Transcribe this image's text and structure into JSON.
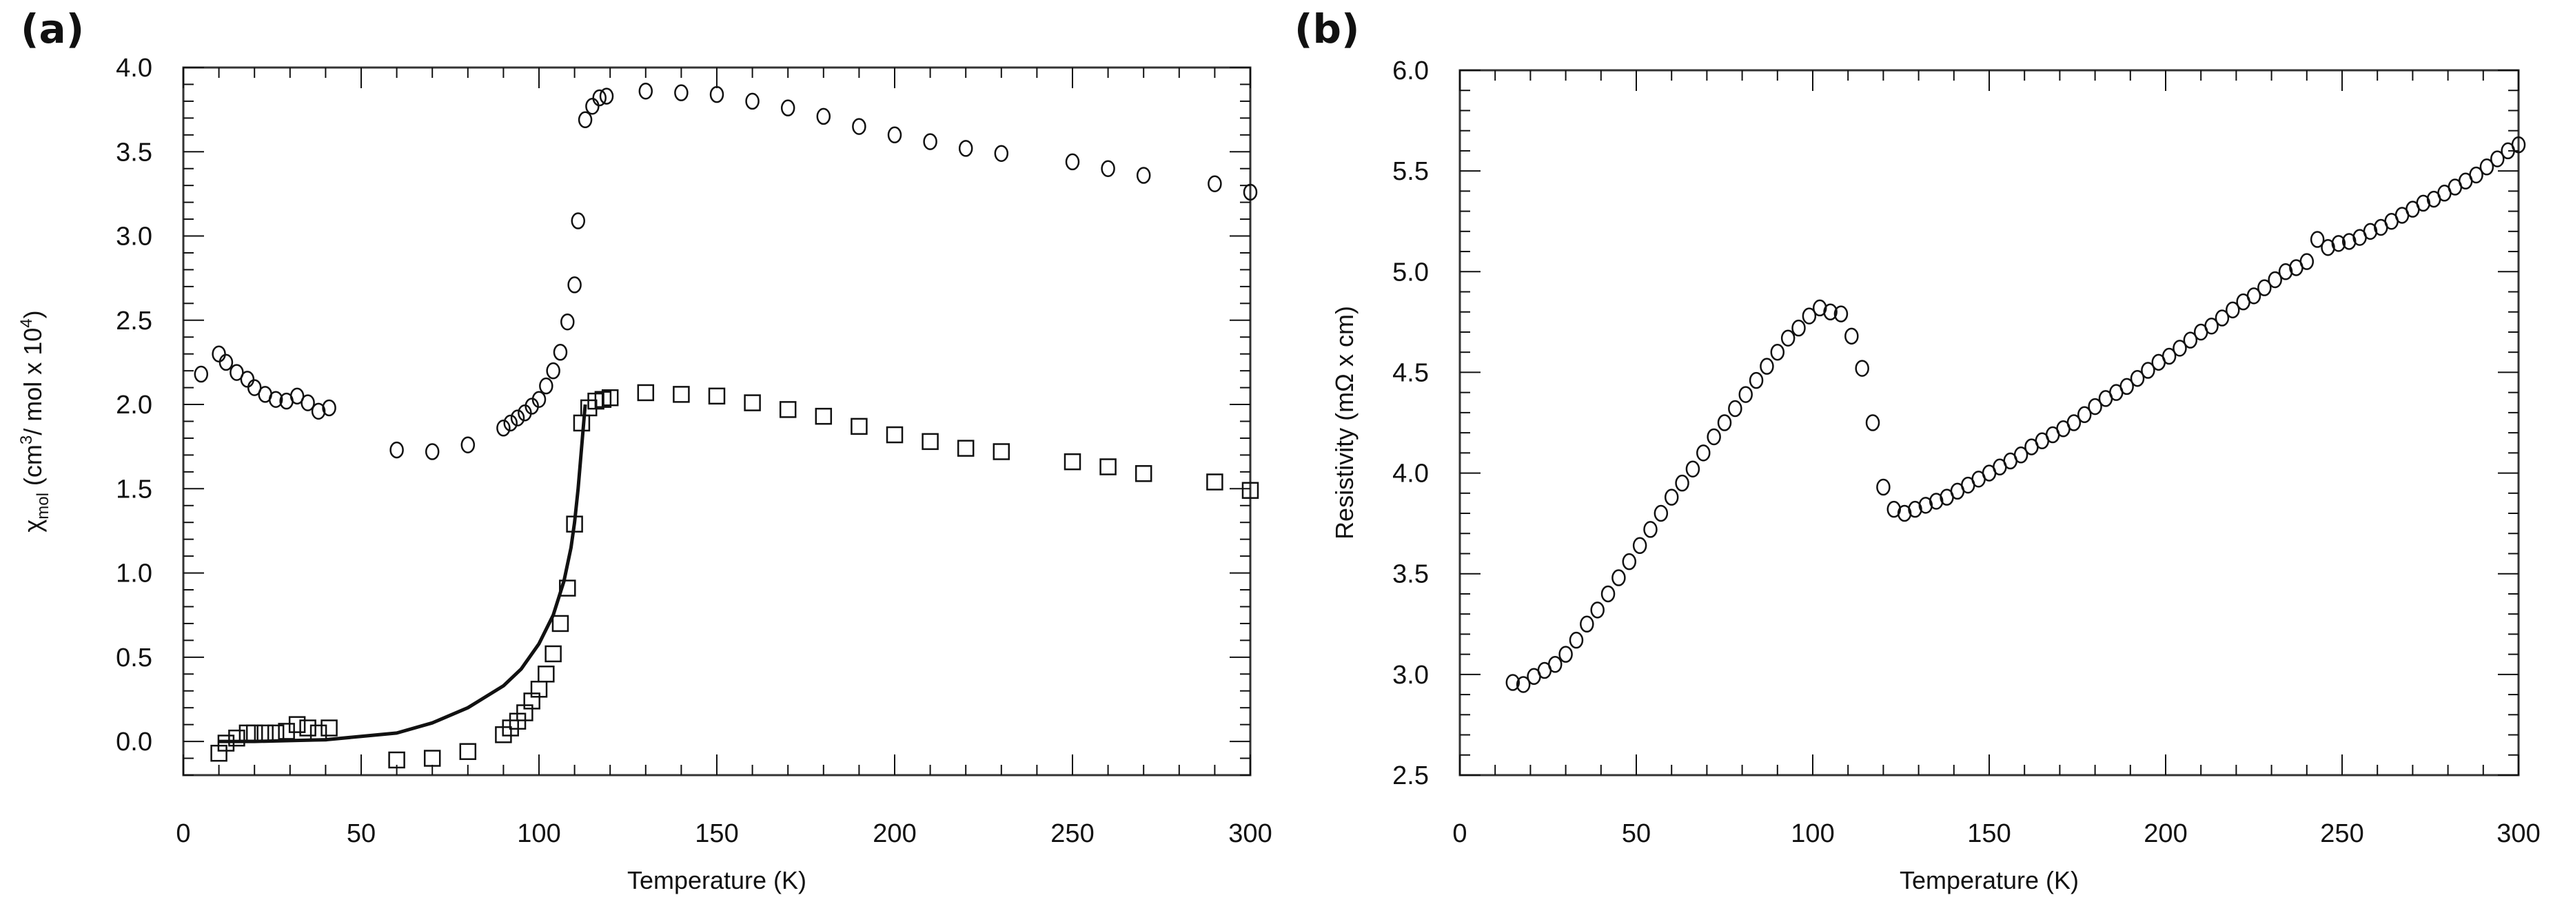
{
  "figure": {
    "panels": [
      {
        "label": "(a)"
      },
      {
        "label": "(b)"
      }
    ]
  },
  "colors": {
    "ink": "#111111",
    "background": "#ffffff",
    "frame": "#333333"
  },
  "chart_data": [
    {
      "panel": "(a)",
      "type": "scatter",
      "title": "",
      "xlabel": "Temperature (K)",
      "ylabel": "χmol (cm³/ mol x 10⁴)",
      "ylabel_parts": {
        "symbol": "χ",
        "sub": "mol",
        "rest": " (cm",
        "sup1": "3",
        "mid": "/ mol x 10",
        "sup2": "4",
        "end": ")"
      },
      "xlim": [
        0,
        300
      ],
      "ylim": [
        -0.2,
        4.0
      ],
      "xticks": [
        0,
        50,
        100,
        150,
        200,
        250,
        300
      ],
      "yticks": [
        0.0,
        0.5,
        1.0,
        1.5,
        2.0,
        2.5,
        3.0,
        3.5,
        4.0
      ],
      "ytick_labels": [
        "0.0",
        "0.5",
        "1.0",
        "1.5",
        "2.0",
        "2.5",
        "3.0",
        "3.5",
        "4.0"
      ],
      "grid": false,
      "legend": null,
      "series": [
        {
          "name": "circles",
          "marker": "circle",
          "x": [
            5,
            10,
            12,
            15,
            18,
            20,
            23,
            26,
            29,
            32,
            35,
            38,
            41,
            60,
            70,
            80,
            90,
            92,
            94,
            96,
            98,
            100,
            102,
            104,
            106,
            108,
            110,
            111,
            113,
            115,
            117,
            119,
            130,
            140,
            150,
            160,
            170,
            180,
            190,
            200,
            210,
            220,
            230,
            250,
            260,
            270,
            290,
            300
          ],
          "y": [
            2.18,
            2.3,
            2.25,
            2.19,
            2.15,
            2.1,
            2.06,
            2.03,
            2.02,
            2.05,
            2.01,
            1.96,
            1.98,
            1.73,
            1.72,
            1.76,
            1.86,
            1.89,
            1.92,
            1.95,
            1.99,
            2.03,
            2.11,
            2.2,
            2.31,
            2.49,
            2.71,
            3.09,
            3.69,
            3.77,
            3.82,
            3.83,
            3.86,
            3.85,
            3.84,
            3.8,
            3.76,
            3.71,
            3.65,
            3.6,
            3.56,
            3.52,
            3.49,
            3.44,
            3.4,
            3.36,
            3.31,
            3.26
          ]
        },
        {
          "name": "squares",
          "marker": "square",
          "x": [
            10,
            12,
            15,
            18,
            20,
            23,
            26,
            29,
            32,
            35,
            38,
            41,
            60,
            70,
            80,
            90,
            92,
            94,
            96,
            98,
            100,
            102,
            104,
            106,
            108,
            110,
            112,
            114,
            116,
            118,
            120,
            130,
            140,
            150,
            160,
            170,
            180,
            190,
            200,
            210,
            220,
            230,
            250,
            260,
            270,
            290,
            300
          ],
          "y": [
            -0.07,
            -0.01,
            0.02,
            0.05,
            0.05,
            0.05,
            0.05,
            0.06,
            0.1,
            0.08,
            0.05,
            0.08,
            -0.11,
            -0.1,
            -0.06,
            0.04,
            0.08,
            0.12,
            0.17,
            0.24,
            0.31,
            0.4,
            0.52,
            0.7,
            0.91,
            1.29,
            1.89,
            1.98,
            2.02,
            2.03,
            2.04,
            2.07,
            2.06,
            2.05,
            2.01,
            1.97,
            1.93,
            1.87,
            1.82,
            1.78,
            1.74,
            1.72,
            1.66,
            1.63,
            1.59,
            1.54,
            1.49
          ]
        },
        {
          "name": "fit",
          "marker": "line",
          "x": [
            10,
            20,
            30,
            40,
            50,
            60,
            70,
            80,
            90,
            95,
            100,
            104,
            107,
            109,
            110,
            111,
            112,
            113
          ],
          "y": [
            0.0,
            0.0,
            0.005,
            0.01,
            0.03,
            0.05,
            0.11,
            0.2,
            0.33,
            0.43,
            0.58,
            0.75,
            0.95,
            1.15,
            1.3,
            1.5,
            1.75,
            2.0
          ]
        }
      ]
    },
    {
      "panel": "(b)",
      "type": "scatter",
      "title": "",
      "xlabel": "Temperature (K)",
      "ylabel": "Resistivity (mΩ x cm)",
      "xlim": [
        0,
        300
      ],
      "ylim": [
        2.5,
        6.0
      ],
      "xticks": [
        0,
        50,
        100,
        150,
        200,
        250,
        300
      ],
      "yticks": [
        2.5,
        3.0,
        3.5,
        4.0,
        4.5,
        5.0,
        5.5,
        6.0
      ],
      "ytick_labels": [
        "2.5",
        "3.0",
        "3.5",
        "4.0",
        "4.5",
        "5.0",
        "5.5",
        "6.0"
      ],
      "grid": false,
      "legend": null,
      "series": [
        {
          "name": "resistivity",
          "marker": "circle",
          "x": [
            15,
            18,
            21,
            24,
            27,
            30,
            33,
            36,
            39,
            42,
            45,
            48,
            51,
            54,
            57,
            60,
            63,
            66,
            69,
            72,
            75,
            78,
            81,
            84,
            87,
            90,
            93,
            96,
            99,
            102,
            105,
            108,
            111,
            114,
            117,
            120,
            123,
            126,
            129,
            132,
            135,
            138,
            141,
            144,
            147,
            150,
            153,
            156,
            159,
            162,
            165,
            168,
            171,
            174,
            177,
            180,
            183,
            186,
            189,
            192,
            195,
            198,
            201,
            204,
            207,
            210,
            213,
            216,
            219,
            222,
            225,
            228,
            231,
            234,
            237,
            240,
            243,
            246,
            249,
            252,
            255,
            258,
            261,
            264,
            267,
            270,
            273,
            276,
            279,
            282,
            285,
            288,
            291,
            294,
            297,
            300
          ],
          "y": [
            2.96,
            2.95,
            2.99,
            3.02,
            3.05,
            3.1,
            3.17,
            3.25,
            3.32,
            3.4,
            3.48,
            3.56,
            3.64,
            3.72,
            3.8,
            3.88,
            3.95,
            4.02,
            4.1,
            4.18,
            4.25,
            4.32,
            4.39,
            4.46,
            4.53,
            4.6,
            4.67,
            4.72,
            4.78,
            4.82,
            4.8,
            4.79,
            4.68,
            4.52,
            4.25,
            3.93,
            3.82,
            3.8,
            3.82,
            3.84,
            3.86,
            3.88,
            3.91,
            3.94,
            3.97,
            4.0,
            4.03,
            4.06,
            4.09,
            4.13,
            4.16,
            4.19,
            4.22,
            4.25,
            4.29,
            4.33,
            4.37,
            4.4,
            4.43,
            4.47,
            4.51,
            4.55,
            4.58,
            4.62,
            4.66,
            4.7,
            4.73,
            4.77,
            4.81,
            4.85,
            4.88,
            4.92,
            4.96,
            5.0,
            5.02,
            5.05,
            5.16,
            5.12,
            5.14,
            5.15,
            5.17,
            5.2,
            5.22,
            5.25,
            5.28,
            5.31,
            5.34,
            5.36,
            5.39,
            5.42,
            5.45,
            5.48,
            5.52,
            5.56,
            5.6,
            5.63
          ]
        }
      ]
    }
  ]
}
